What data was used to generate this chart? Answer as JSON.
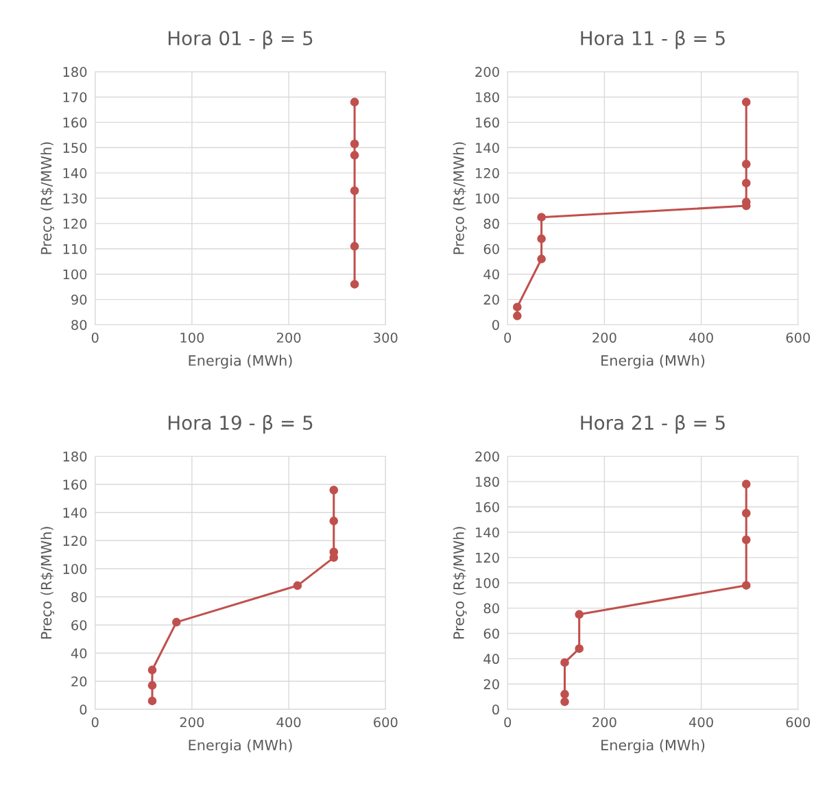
{
  "chart_data": [
    {
      "type": "line",
      "title": "Hora 01 - β = 5",
      "xlabel": "Energia (MWh)",
      "ylabel": "Preço (R$/MWh)",
      "xlim": [
        0,
        300
      ],
      "xticks": [
        0,
        100,
        200,
        300
      ],
      "ylim": [
        80,
        180
      ],
      "yticks": [
        80,
        90,
        100,
        110,
        120,
        130,
        140,
        150,
        160,
        170,
        180
      ],
      "grid": true,
      "marker": "circle",
      "line_style": "solid",
      "series": [
        {
          "color": "#c0504d",
          "x": [
            268,
            268,
            268,
            268,
            268,
            268
          ],
          "values": [
            96,
            111,
            133,
            147,
            151.5,
            168
          ]
        }
      ]
    },
    {
      "type": "line",
      "title": "Hora 11 - β = 5",
      "xlabel": "Energia (MWh)",
      "ylabel": "Preço (R$/MWh)",
      "xlim": [
        0,
        600
      ],
      "xticks": [
        0,
        200,
        400,
        600
      ],
      "ylim": [
        0,
        200
      ],
      "yticks": [
        0,
        20,
        40,
        60,
        80,
        100,
        120,
        140,
        160,
        180,
        200
      ],
      "grid": true,
      "marker": "circle",
      "line_style": "solid",
      "series": [
        {
          "color": "#c0504d",
          "x": [
            20,
            20,
            70,
            70,
            70,
            493,
            493,
            493,
            493,
            493
          ],
          "values": [
            7,
            14,
            52,
            68,
            85,
            94,
            97,
            112,
            127,
            176
          ]
        }
      ]
    },
    {
      "type": "line",
      "title": "Hora 19 - β = 5",
      "xlabel": "Energia (MWh)",
      "ylabel": "Preço (R$/MWh)",
      "xlim": [
        0,
        600
      ],
      "xticks": [
        0,
        200,
        400,
        600
      ],
      "ylim": [
        0,
        180
      ],
      "yticks": [
        0,
        20,
        40,
        60,
        80,
        100,
        120,
        140,
        160,
        180
      ],
      "grid": true,
      "marker": "circle",
      "line_style": "solid",
      "series": [
        {
          "color": "#c0504d",
          "x": [
            118,
            118,
            118,
            168,
            418,
            493,
            493,
            493,
            493
          ],
          "values": [
            6,
            17,
            28,
            62,
            88,
            108,
            112,
            134,
            156
          ]
        }
      ]
    },
    {
      "type": "line",
      "title": "Hora 21 - β = 5",
      "xlabel": "Energia (MWh)",
      "ylabel": "Preço (R$/MWh)",
      "xlim": [
        0,
        600
      ],
      "xticks": [
        0,
        200,
        400,
        600
      ],
      "ylim": [
        0,
        200
      ],
      "yticks": [
        0,
        20,
        40,
        60,
        80,
        100,
        120,
        140,
        160,
        180,
        200
      ],
      "grid": true,
      "marker": "circle",
      "line_style": "solid",
      "series": [
        {
          "color": "#c0504d",
          "x": [
            118,
            118,
            118,
            148,
            148,
            493,
            493,
            493,
            493
          ],
          "values": [
            6,
            12,
            37,
            48,
            75,
            98,
            134,
            155,
            178
          ]
        }
      ]
    }
  ]
}
